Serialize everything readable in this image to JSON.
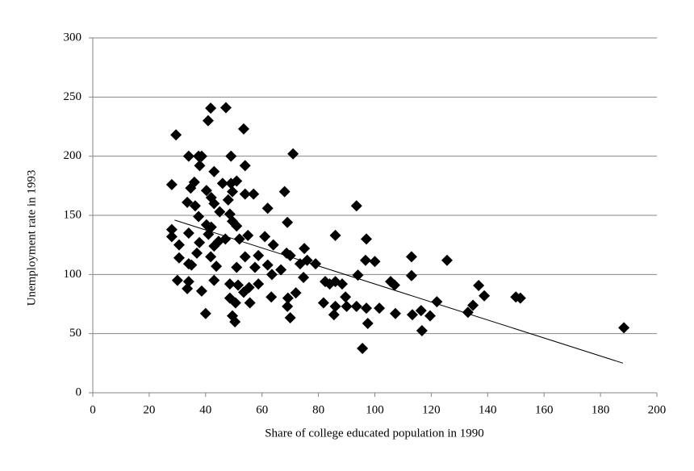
{
  "chart_data": {
    "type": "scatter",
    "x_label": "Share of  college educated population in 1990",
    "y_label": "Unemployment rate in 1993",
    "color": "#000000",
    "x": [
      29.5,
      41.8,
      47.2,
      40.9,
      53.5,
      71,
      34,
      37.5,
      38.6,
      49,
      37.9,
      54,
      28,
      36,
      43,
      68,
      49,
      51,
      57,
      54,
      46,
      40.3,
      34.7,
      33.5,
      36.3,
      42,
      43,
      48,
      49.5,
      93.5,
      62,
      45,
      48.6,
      37.5,
      69,
      49.5,
      51,
      42,
      40.3,
      28,
      28,
      34,
      41,
      55,
      61,
      86,
      97,
      37.8,
      44.6,
      47,
      52,
      30.6,
      43,
      64,
      75,
      36.9,
      41.8,
      54,
      58.7,
      68.7,
      70,
      30.6,
      113,
      125.6,
      96.7,
      100,
      73.5,
      79,
      76,
      34,
      35,
      43.8,
      51,
      57.5,
      62,
      66.7,
      63.5,
      94,
      113,
      74.7,
      82.4,
      84,
      86,
      88.4,
      105.6,
      107,
      136.8,
      30,
      34,
      43,
      51.5,
      48.6,
      55.4,
      58.7,
      33.5,
      38.6,
      53.5,
      72,
      63.3,
      48.6,
      50.6,
      55.7,
      69.2,
      81.8,
      89.6,
      122,
      138.8,
      150,
      151.6,
      134.8,
      86,
      90,
      93.5,
      97,
      101.6,
      107.3,
      113.3,
      116.4,
      133,
      119.6,
      85.5,
      40,
      69,
      70,
      49.5,
      50.4,
      97.5,
      116.7,
      95.6,
      188.3
    ],
    "y": [
      218,
      240.6,
      241,
      230,
      223,
      202,
      200,
      200,
      200,
      200,
      192,
      192,
      176,
      178,
      187,
      170,
      177,
      179,
      168,
      168,
      177,
      171,
      173,
      161,
      158,
      165,
      160,
      163,
      170,
      158,
      156,
      153,
      151,
      149,
      144,
      145,
      141,
      140,
      142,
      138,
      132,
      135,
      134,
      133,
      132,
      133,
      130,
      127,
      128,
      130,
      130,
      125,
      124,
      125,
      122,
      118,
      115,
      115,
      116,
      118,
      116,
      114,
      115,
      112,
      112,
      111,
      109,
      109,
      112,
      109,
      108,
      107,
      106,
      106,
      108,
      104,
      100,
      99.5,
      99,
      97.5,
      94,
      92,
      94,
      92,
      94,
      91,
      90.7,
      95,
      94,
      95,
      91,
      92,
      89,
      92,
      88,
      86,
      85,
      84.5,
      81,
      80,
      76,
      76,
      80,
      76,
      81,
      77,
      82,
      81,
      80,
      74,
      73,
      73,
      73,
      71.5,
      71.5,
      67,
      66,
      69.5,
      68,
      65,
      66,
      67,
      73,
      63.4,
      65,
      60,
      58.6,
      52.5,
      37.5,
      55
    ],
    "trendline": {
      "x": [
        29,
        188
      ],
      "y": [
        146,
        25
      ]
    },
    "xlim": [
      0,
      200
    ],
    "xticks": [
      0,
      20,
      40,
      60,
      80,
      100,
      120,
      140,
      160,
      180,
      200
    ],
    "ylim": [
      0,
      300
    ],
    "yticks": [
      0,
      50,
      100,
      150,
      200,
      250,
      300
    ],
    "grid": true
  }
}
